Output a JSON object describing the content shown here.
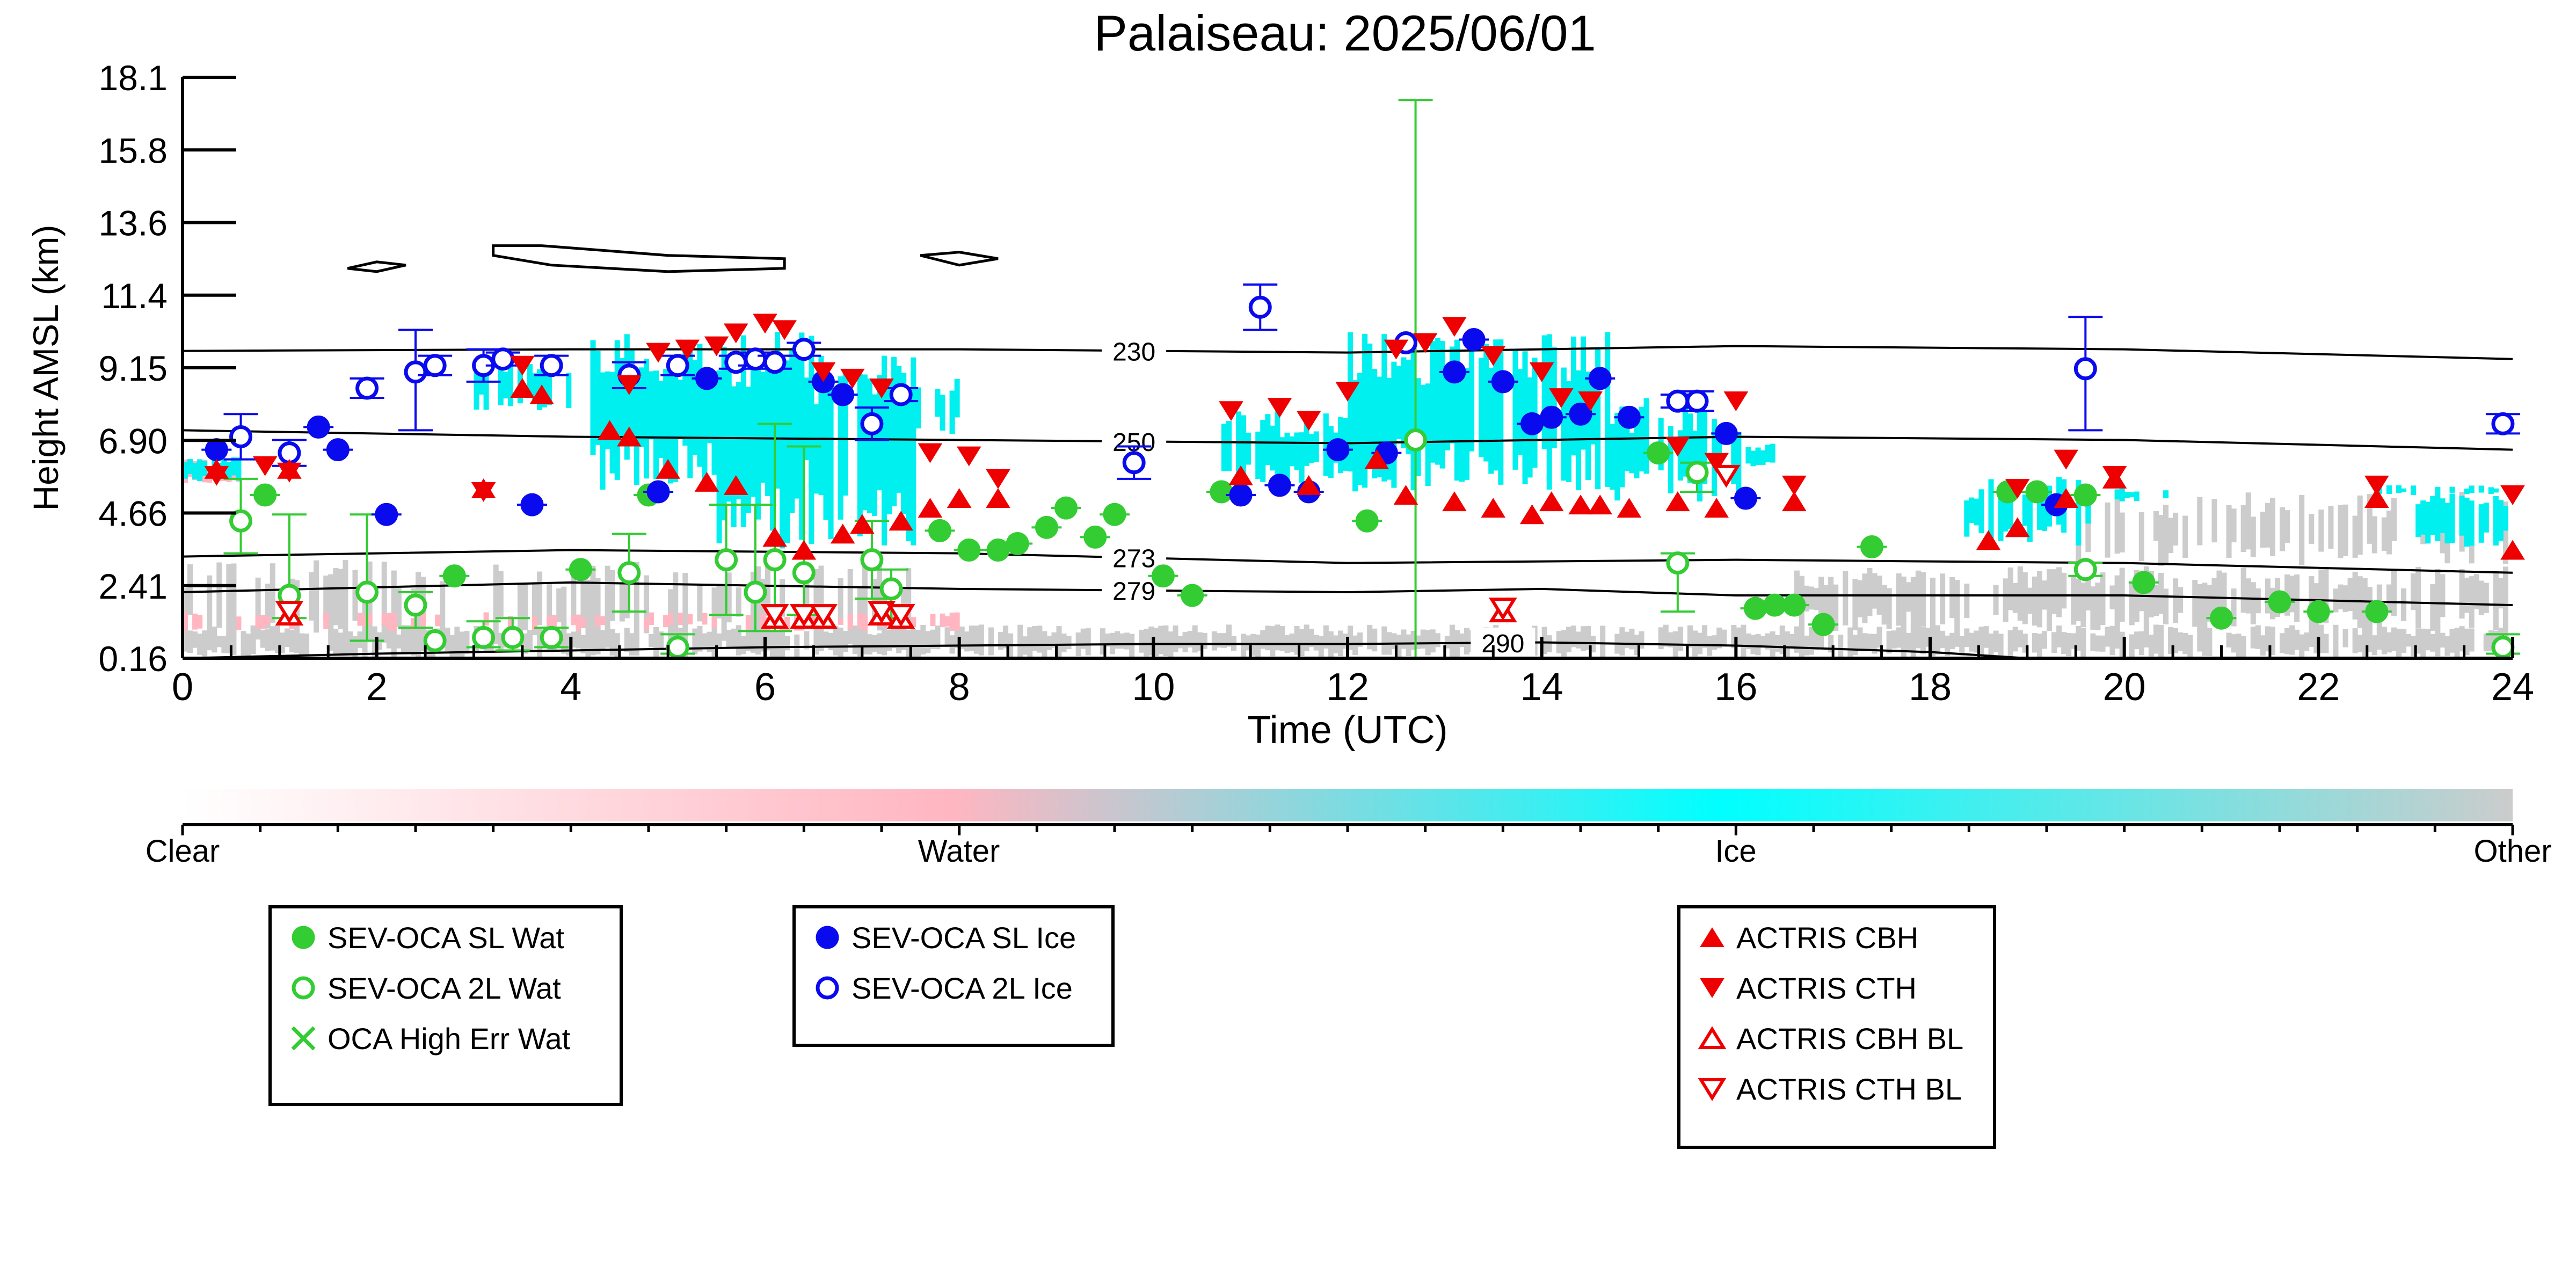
{
  "title": "Palaiseau: 2025/06/01",
  "chart_data": {
    "type": "scatter",
    "title": "Palaiseau: 2025/06/01",
    "xlabel": "Time (UTC)",
    "ylabel": "Height AMSL (km)",
    "xlim": [
      0,
      24
    ],
    "xticks": [
      "0",
      "2",
      "4",
      "6",
      "8",
      "10",
      "12",
      "14",
      "16",
      "18",
      "20",
      "22",
      "24"
    ],
    "yticks": [
      "0.16",
      "2.41",
      "4.66",
      "6.90",
      "9.15",
      "11.4",
      "13.6",
      "15.8",
      "18.1"
    ],
    "ylim": [
      0.16,
      18.1
    ],
    "grid": false,
    "background": "cloud classification curtain (Clear / Water / Ice / Other)",
    "colors": {
      "sl_wat": "#33cc33",
      "sl_ice": "#0a0aee",
      "actris": "#ee0000",
      "ice": "#00f0f0",
      "water": "#ffb6c1",
      "other": "#cccccc"
    },
    "contours": [
      {
        "label": "230",
        "label_x": 9.8,
        "x": [
          0,
          4,
          8,
          12,
          16,
          20,
          24
        ],
        "y": [
          9.65,
          9.7,
          9.7,
          9.6,
          9.8,
          9.7,
          9.4
        ]
      },
      {
        "label": "250",
        "label_x": 9.8,
        "x": [
          0,
          4,
          8,
          12,
          16,
          20,
          24
        ],
        "y": [
          7.2,
          7.0,
          6.9,
          6.8,
          7.0,
          6.9,
          6.6
        ]
      },
      {
        "label": "273",
        "label_x": 9.8,
        "x": [
          0,
          4,
          8,
          12,
          16,
          20,
          24
        ],
        "y": [
          3.3,
          3.5,
          3.4,
          3.1,
          3.2,
          3.1,
          2.8
        ]
      },
      {
        "label": "279",
        "label_x": 9.8,
        "x": [
          0,
          4,
          8,
          12,
          14,
          16,
          20,
          24
        ],
        "y": [
          2.2,
          2.5,
          2.3,
          2.2,
          2.3,
          2.1,
          2.1,
          1.8
        ]
      },
      {
        "label": "290",
        "label_x": 13.6,
        "x": [
          0,
          2,
          6,
          10,
          12,
          14,
          16,
          18,
          19
        ],
        "y": [
          0.16,
          0.3,
          0.5,
          0.6,
          0.6,
          0.65,
          0.55,
          0.35,
          0.16
        ]
      }
    ],
    "series": [
      {
        "name": "SEV-OCA SL Wat",
        "marker": "filled-circle",
        "color": "#33cc33",
        "x": [
          0.85,
          2.8,
          4.1,
          4.8,
          7.8,
          8.1,
          8.4,
          8.6,
          8.9,
          9.1,
          9.4,
          9.6,
          10.1,
          10.4,
          10.7,
          12.2,
          15.2,
          16.2,
          16.4,
          16.6,
          16.9,
          17.4,
          18.8,
          19.1,
          19.6,
          20.2,
          21.0,
          21.6,
          22.0,
          22.6
        ],
        "y": [
          5.2,
          2.7,
          2.9,
          5.2,
          4.1,
          3.5,
          3.5,
          3.7,
          4.2,
          4.8,
          3.9,
          4.6,
          2.7,
          2.1,
          5.3,
          4.4,
          6.5,
          1.7,
          1.8,
          1.8,
          1.2,
          3.6,
          5.3,
          5.3,
          5.2,
          2.5,
          1.4,
          1.9,
          1.6,
          1.6
        ]
      },
      {
        "name": "SEV-OCA 2L Wat",
        "marker": "open-circle",
        "color": "#33cc33",
        "x": [
          0.6,
          1.1,
          1.9,
          2.4,
          2.6,
          3.1,
          3.4,
          3.8,
          4.6,
          5.1,
          5.6,
          5.9,
          6.1,
          6.4,
          7.1,
          7.3,
          12.7,
          15.4,
          15.6,
          19.6,
          23.9
        ],
        "y": [
          4.4,
          2.1,
          2.2,
          1.8,
          0.7,
          0.8,
          0.8,
          0.8,
          2.8,
          0.5,
          3.2,
          2.2,
          3.2,
          2.8,
          3.2,
          2.3,
          6.9,
          3.1,
          5.9,
          2.9,
          0.5
        ],
        "err_low": [
          1.0,
          0.7,
          1.5,
          0.7,
          0.0,
          0.3,
          0.4,
          0.3,
          1.2,
          0.2,
          1.7,
          1.2,
          2.2,
          1.3,
          1.2,
          0.9,
          7.0,
          1.5,
          0.6,
          0.2,
          0.2
        ],
        "err_high": [
          1.3,
          2.5,
          2.4,
          0.4,
          0.0,
          0.5,
          0.6,
          0.3,
          1.2,
          0.4,
          1.7,
          2.7,
          4.2,
          3.9,
          1.2,
          0.6,
          10.5,
          0.3,
          0.3,
          0.2,
          0.4
        ]
      },
      {
        "name": "OCA High Err Wat",
        "marker": "x",
        "color": "#33cc33",
        "x": [],
        "y": []
      },
      {
        "name": "SEV-OCA SL Ice",
        "marker": "filled-circle",
        "color": "#0a0aee",
        "x": [
          0.35,
          1.4,
          1.6,
          2.1,
          3.6,
          4.9,
          5.4,
          6.6,
          6.8,
          10.9,
          11.3,
          11.6,
          11.9,
          12.4,
          13.1,
          13.3,
          13.6,
          13.9,
          14.1,
          14.4,
          14.6,
          14.9,
          15.9,
          16.1,
          19.3
        ],
        "y": [
          6.6,
          7.3,
          6.6,
          4.6,
          4.9,
          5.3,
          8.8,
          8.7,
          8.3,
          5.2,
          5.5,
          5.3,
          6.6,
          6.5,
          9.0,
          10.0,
          8.7,
          7.4,
          7.6,
          7.7,
          8.8,
          7.6,
          7.1,
          5.1,
          4.9
        ]
      },
      {
        "name": "SEV-OCA 2L Ice",
        "marker": "open-circle",
        "color": "#0a0aee",
        "x": [
          0.6,
          1.1,
          1.9,
          2.4,
          2.6,
          3.1,
          3.3,
          3.8,
          4.6,
          5.1,
          5.7,
          5.9,
          6.1,
          6.4,
          7.1,
          7.4,
          9.8,
          11.1,
          12.6,
          15.4,
          15.6,
          19.6,
          23.9
        ],
        "y": [
          7.0,
          6.5,
          8.5,
          9.0,
          9.2,
          9.2,
          9.4,
          9.2,
          8.9,
          9.2,
          9.3,
          9.4,
          9.3,
          9.7,
          7.4,
          8.3,
          6.2,
          11.0,
          9.9,
          8.1,
          8.1,
          9.1,
          7.4
        ],
        "err_low": [
          0.7,
          0.4,
          0.3,
          1.8,
          0.3,
          0.5,
          0.2,
          0.3,
          0.4,
          0.3,
          0.2,
          0.2,
          0.2,
          0.2,
          0.5,
          0.2,
          0.5,
          0.7,
          0.0,
          0.2,
          0.3,
          1.9,
          0.3
        ],
        "err_high": [
          0.7,
          0.4,
          0.3,
          1.3,
          0.3,
          0.5,
          0.2,
          0.3,
          0.4,
          0.3,
          0.2,
          0.2,
          0.2,
          0.2,
          0.5,
          0.2,
          0.5,
          0.7,
          0.0,
          0.2,
          0.3,
          1.6,
          0.3
        ]
      },
      {
        "name": "ACTRIS CBH",
        "marker": "triangle-up-filled",
        "color": "#ee0000",
        "x": [
          0.35,
          1.1,
          3.1,
          3.5,
          3.7,
          4.4,
          4.6,
          5.0,
          5.4,
          5.7,
          6.1,
          6.4,
          6.8,
          7.0,
          7.4,
          7.7,
          8.0,
          8.4,
          10.9,
          11.6,
          12.3,
          12.6,
          13.1,
          13.5,
          13.9,
          14.1,
          14.4,
          14.6,
          14.9,
          15.4,
          15.8,
          16.6,
          18.6,
          18.9,
          19.4,
          19.9,
          22.6,
          24.0
        ],
        "y": [
          6.0,
          6.0,
          5.4,
          8.5,
          8.3,
          7.2,
          7.0,
          6.0,
          5.6,
          5.5,
          3.9,
          3.5,
          4.0,
          4.3,
          4.4,
          4.8,
          5.1,
          5.1,
          5.8,
          5.5,
          6.3,
          5.2,
          5.0,
          4.8,
          4.6,
          5.0,
          4.9,
          4.9,
          4.8,
          5.0,
          4.8,
          5.0,
          3.8,
          4.2,
          5.1,
          5.7,
          5.1,
          3.5
        ]
      },
      {
        "name": "ACTRIS CTH",
        "marker": "triangle-down-filled",
        "color": "#ee0000",
        "x": [
          0.35,
          0.85,
          1.1,
          3.1,
          3.5,
          4.6,
          4.9,
          5.2,
          5.5,
          5.7,
          6.0,
          6.2,
          6.6,
          6.9,
          7.2,
          7.7,
          8.1,
          8.4,
          10.8,
          11.3,
          11.6,
          12.0,
          12.5,
          12.8,
          13.1,
          13.5,
          14.0,
          14.2,
          14.5,
          15.4,
          15.8,
          16.0,
          16.6,
          18.9,
          19.4,
          19.9,
          22.6,
          24.0
        ],
        "y": [
          5.8,
          6.1,
          5.9,
          5.3,
          9.2,
          8.6,
          9.6,
          9.7,
          9.8,
          10.2,
          10.5,
          10.3,
          9.0,
          8.8,
          8.5,
          6.5,
          6.4,
          5.7,
          7.8,
          7.9,
          7.5,
          8.4,
          9.7,
          9.9,
          10.4,
          9.5,
          9.0,
          8.2,
          8.1,
          6.7,
          6.2,
          8.1,
          5.5,
          5.4,
          6.3,
          5.8,
          5.5,
          5.2
        ]
      },
      {
        "name": "ACTRIS CBH BL",
        "marker": "triangle-up-open",
        "color": "#ee0000",
        "x": [
          1.1,
          6.1,
          6.4,
          6.6,
          7.2,
          7.4,
          13.6
        ],
        "y": [
          1.5,
          1.4,
          1.4,
          1.4,
          1.5,
          1.4,
          1.6
        ]
      },
      {
        "name": "ACTRIS CTH BL",
        "marker": "triangle-down-open",
        "color": "#ee0000",
        "x": [
          1.1,
          6.1,
          6.4,
          6.6,
          7.2,
          7.4,
          13.6,
          15.9
        ],
        "y": [
          1.6,
          1.5,
          1.5,
          1.5,
          1.6,
          1.5,
          1.7,
          5.8
        ]
      }
    ]
  },
  "colorbar": {
    "labels": [
      "Clear",
      "Water",
      "Ice",
      "Other"
    ],
    "colors": [
      "#ffffff",
      "#ffb6c1",
      "#00ffff",
      "#cccccc"
    ]
  },
  "legends": [
    {
      "items": [
        {
          "label": "SEV-OCA SL Wat",
          "marker": "filled-circle",
          "color": "#33cc33"
        },
        {
          "label": "SEV-OCA 2L Wat",
          "marker": "open-circle",
          "color": "#33cc33"
        },
        {
          "label": "OCA High Err Wat",
          "marker": "x",
          "color": "#33cc33"
        }
      ]
    },
    {
      "items": [
        {
          "label": "SEV-OCA SL Ice",
          "marker": "filled-circle",
          "color": "#0a0aee"
        },
        {
          "label": "SEV-OCA 2L Ice",
          "marker": "open-circle",
          "color": "#0a0aee"
        }
      ]
    },
    {
      "items": [
        {
          "label": "ACTRIS CBH",
          "marker": "triangle-up-filled",
          "color": "#ee0000"
        },
        {
          "label": "ACTRIS CTH",
          "marker": "triangle-down-filled",
          "color": "#ee0000"
        },
        {
          "label": "ACTRIS CBH BL",
          "marker": "triangle-up-open",
          "color": "#ee0000"
        },
        {
          "label": "ACTRIS CTH BL",
          "marker": "triangle-down-open",
          "color": "#ee0000"
        }
      ]
    }
  ]
}
